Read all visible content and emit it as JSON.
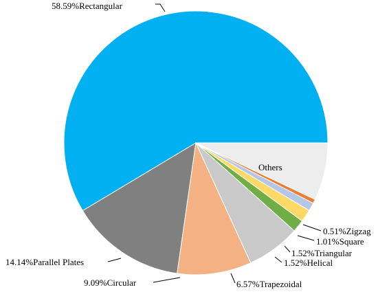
{
  "chart_data": {
    "type": "pie",
    "categories": [
      "Rectangular",
      "Parallel Plates",
      "Circular",
      "Trapezoidal",
      "Helical",
      "Triangular",
      "Square",
      "Zigzag",
      "Others"
    ],
    "values": [
      58.59,
      14.14,
      9.09,
      6.57,
      1.52,
      1.52,
      1.01,
      0.51,
      7.05
    ],
    "value_labels": [
      "58.59%",
      "14.14%",
      "9.09%",
      "6.57%",
      "1.52%",
      "1.52%",
      "1.01%",
      "0.51%",
      null
    ],
    "colors": [
      "#00b0f0",
      "#808080",
      "#f4b183",
      "#c9c9c9",
      "#70ad47",
      "#ffd966",
      "#b4c7e7",
      "#ed7d31",
      "#ededed"
    ]
  }
}
